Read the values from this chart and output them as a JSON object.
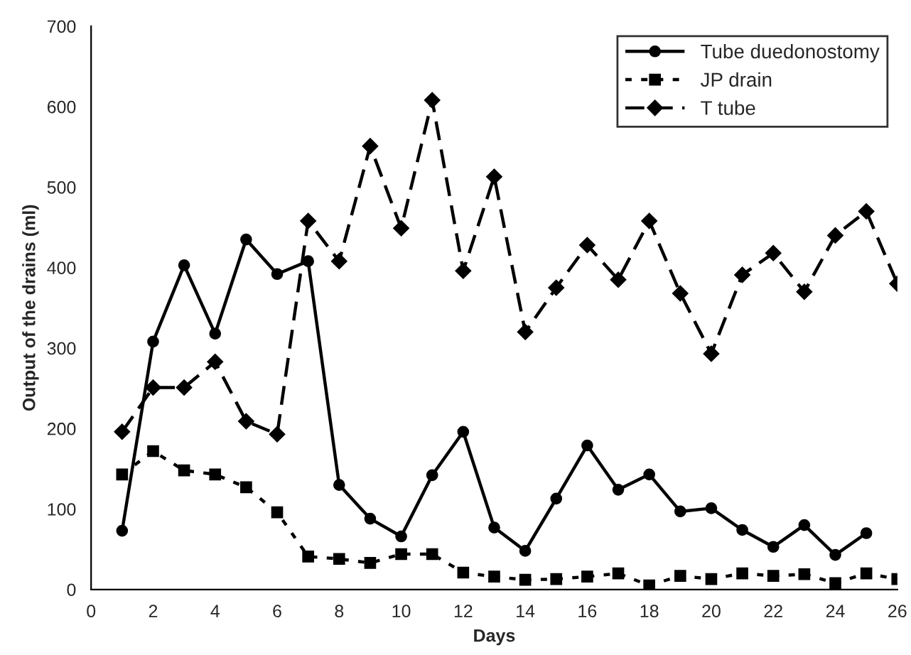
{
  "chart_data": {
    "type": "line",
    "xlabel": "Days",
    "ylabel": "Output of the drains (ml)",
    "x": [
      1,
      2,
      3,
      4,
      5,
      6,
      7,
      8,
      9,
      10,
      11,
      12,
      13,
      14,
      15,
      16,
      17,
      18,
      19,
      20,
      21,
      22,
      23,
      24,
      25,
      26
    ],
    "series": [
      {
        "name": "Tube duedonostomy",
        "color": "#000000",
        "marker": "circle",
        "line_style": "solid",
        "values": [
          73,
          308,
          403,
          318,
          435,
          392,
          408,
          130,
          88,
          66,
          142,
          196,
          77,
          48,
          113,
          179,
          124,
          143,
          97,
          101,
          74,
          53,
          80,
          43,
          70,
          null
        ]
      },
      {
        "name": "JP drain",
        "color": "#000000",
        "marker": "square",
        "line_style": "dotted",
        "values": [
          143,
          172,
          148,
          143,
          127,
          96,
          41,
          38,
          33,
          44,
          44,
          21,
          16,
          12,
          13,
          16,
          20,
          5,
          17,
          13,
          20,
          17,
          19,
          8,
          20,
          13
        ]
      },
      {
        "name": "T tube",
        "color": "#000000",
        "marker": "diamond",
        "line_style": "dashed",
        "values": [
          196,
          251,
          251,
          283,
          209,
          193,
          458,
          408,
          551,
          449,
          608,
          396,
          513,
          320,
          375,
          428,
          385,
          458,
          368,
          293,
          391,
          418,
          370,
          440,
          470,
          380
        ]
      }
    ],
    "xlim": [
      0,
      26
    ],
    "xticks": [
      0,
      2,
      4,
      6,
      8,
      10,
      12,
      14,
      16,
      18,
      20,
      22,
      24,
      26
    ],
    "ylim": [
      0,
      700
    ],
    "yticks": [
      0,
      100,
      200,
      300,
      400,
      500,
      600,
      700
    ],
    "grid": false,
    "legend": "top right"
  }
}
